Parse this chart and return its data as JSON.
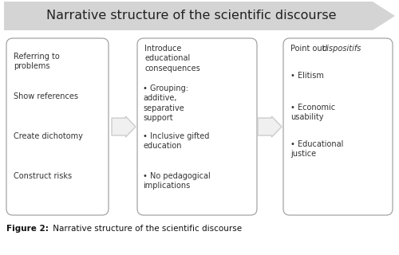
{
  "title": "Narrative structure of the scientific discourse",
  "caption_bold": "Figure 2:",
  "caption_text": "     Narrative structure of the scientific discourse",
  "bg_color": "#ffffff",
  "arrow_color": "#b8b8b8",
  "box_color": "#ffffff",
  "box_edge_color": "#999999",
  "box1_lines": [
    "Referring to\nproblems",
    "Show references",
    "Create dichotomy",
    "Construct risks"
  ],
  "box2_title": "Introduce\neducational\nconsequences",
  "box2_bullets": [
    "Grouping:\nadditive,\nseparative\nsupport",
    "Inclusive gifted\neducation",
    "No pedagogical\nimplications"
  ],
  "box3_title_normal": "Point out ",
  "box3_title_italic": "dispositifs",
  "box3_bullets": [
    "Elitism",
    "Economic\nusability",
    "Educational\njustice"
  ],
  "title_fontsize": 11.5,
  "body_fontsize": 7.0,
  "caption_fontsize": 7.5
}
